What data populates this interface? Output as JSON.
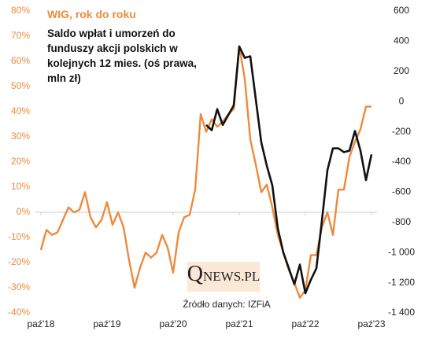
{
  "chart_data": {
    "type": "line",
    "categories": [
      "paź'18",
      null,
      null,
      null,
      null,
      null,
      null,
      null,
      null,
      null,
      null,
      null,
      "paź'19",
      null,
      null,
      null,
      null,
      null,
      null,
      null,
      null,
      null,
      null,
      null,
      "paź'20",
      null,
      null,
      null,
      null,
      null,
      null,
      null,
      null,
      null,
      null,
      null,
      "paź'21",
      null,
      null,
      null,
      null,
      null,
      null,
      null,
      null,
      null,
      null,
      null,
      "paź'22",
      null,
      null,
      null,
      null,
      null,
      null,
      null,
      null,
      null,
      null,
      null,
      "paź'23"
    ],
    "series": [
      {
        "name": "WIG, rok do roku",
        "color": "#ee8a3c",
        "values": [
          -15,
          -7,
          -9,
          -8,
          -3,
          2,
          0,
          1,
          8,
          -2,
          -6,
          -3,
          4,
          -5,
          0,
          -6,
          -19,
          -30,
          -22,
          -16,
          -18,
          -16,
          -9,
          -14,
          -24,
          -8,
          -2,
          -1,
          9,
          39,
          32,
          37,
          34,
          36,
          39,
          41,
          66,
          53,
          29,
          19,
          8,
          11,
          2,
          -9,
          -16,
          -23,
          -28,
          -34,
          -31,
          -17,
          -17,
          -6,
          0,
          -9,
          9,
          9,
          22,
          28,
          33,
          42,
          42
        ]
      },
      {
        "name": "Saldo wpłat i umorzeń do funduszy akcji polskich w kolejnych 12 mies. (oś prawa, mln zł)",
        "color": "#111111",
        "axis": "y2",
        "values": [
          null,
          null,
          null,
          null,
          null,
          null,
          null,
          null,
          null,
          null,
          null,
          null,
          null,
          null,
          null,
          null,
          null,
          null,
          null,
          null,
          null,
          null,
          null,
          null,
          null,
          null,
          null,
          null,
          null,
          null,
          -155,
          -190,
          -50,
          -155,
          -90,
          -25,
          365,
          290,
          300,
          15,
          -270,
          -425,
          -555,
          -840,
          -1000,
          -1105,
          -1210,
          -1080,
          -1270,
          -1180,
          -1105,
          -790,
          -455,
          -310,
          -310,
          -335,
          -325,
          -195,
          -325,
          -520,
          -350
        ]
      }
    ],
    "ylim": [
      -40,
      80
    ],
    "yticks": [
      {
        "value": -40,
        "label": "-40%"
      },
      {
        "value": -30,
        "label": "-30%"
      },
      {
        "value": -20,
        "label": "-20%"
      },
      {
        "value": -10,
        "label": "-10%"
      },
      {
        "value": 0,
        "label": "0%"
      },
      {
        "value": 10,
        "label": "10%"
      },
      {
        "value": 20,
        "label": "20%"
      },
      {
        "value": 30,
        "label": "30%"
      },
      {
        "value": 40,
        "label": "40%"
      },
      {
        "value": 50,
        "label": "50%"
      },
      {
        "value": 60,
        "label": "60%"
      },
      {
        "value": 70,
        "label": "70%"
      },
      {
        "value": 80,
        "label": "80%"
      }
    ],
    "y2lim": [
      -1400,
      600
    ],
    "y2ticks": [
      {
        "value": -1400,
        "label": "-1 400"
      },
      {
        "value": -1200,
        "label": "-1 200"
      },
      {
        "value": -1000,
        "label": "-1 000"
      },
      -800,
      -600,
      -400,
      -200,
      0,
      200,
      400,
      600
    ],
    "logo": "QNEWS.PL",
    "source": "Źródło danych: IZFiA"
  }
}
